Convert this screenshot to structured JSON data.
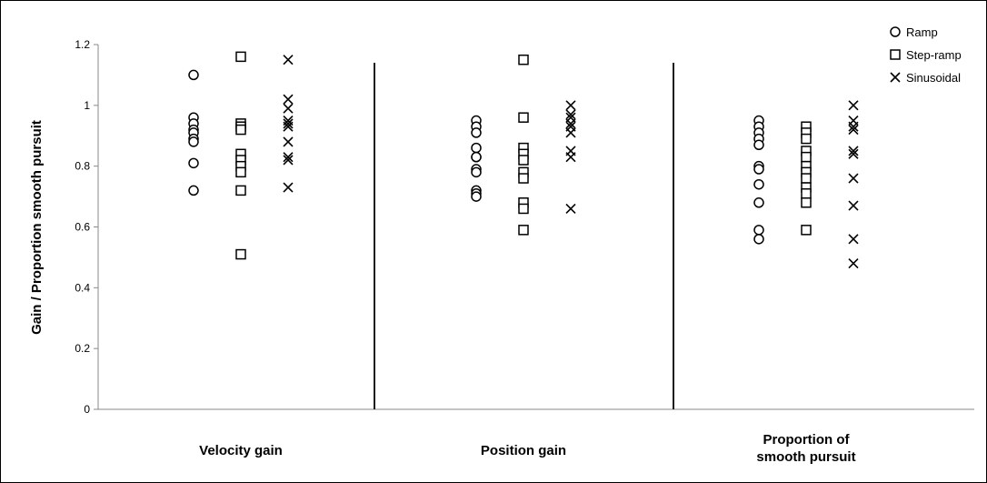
{
  "chart_data": {
    "type": "scatter",
    "title": "",
    "xlabel": "",
    "ylabel": "Gain / Proportion smooth pursuit",
    "ylim": [
      0,
      1.2
    ],
    "yticks": [
      "0",
      "0.2",
      "0.4",
      "0.6",
      "0.8",
      "1",
      "1.2"
    ],
    "ytick_values": [
      0,
      0.2,
      0.4,
      0.6,
      0.8,
      1.0,
      1.2
    ],
    "grid": false,
    "legend_position": "top-right",
    "categories": [
      {
        "lines": [
          "Velocity gain"
        ]
      },
      {
        "lines": [
          "Position gain"
        ]
      },
      {
        "lines": [
          "Proportion of",
          "smooth pursuit"
        ]
      }
    ],
    "series": [
      {
        "name": "Ramp",
        "marker": "circle",
        "values": [
          [
            1.1,
            0.96,
            0.94,
            0.92,
            0.91,
            0.89,
            0.88,
            0.81,
            0.72
          ],
          [
            0.95,
            0.93,
            0.91,
            0.86,
            0.83,
            0.83,
            0.79,
            0.78,
            0.72,
            0.71,
            0.7
          ],
          [
            0.95,
            0.93,
            0.91,
            0.89,
            0.87,
            0.8,
            0.79,
            0.74,
            0.68,
            0.59,
            0.56
          ]
        ]
      },
      {
        "name": "Step-ramp",
        "marker": "square",
        "values": [
          [
            1.16,
            0.94,
            0.93,
            0.92,
            0.84,
            0.82,
            0.8,
            0.78,
            0.72,
            0.51
          ],
          [
            1.15,
            0.96,
            0.86,
            0.84,
            0.82,
            0.78,
            0.76,
            0.68,
            0.66,
            0.59
          ],
          [
            0.93,
            0.91,
            0.89,
            0.85,
            0.83,
            0.8,
            0.78,
            0.76,
            0.73,
            0.71,
            0.68,
            0.59
          ]
        ]
      },
      {
        "name": "Sinusoidal",
        "marker": "x",
        "values": [
          [
            1.15,
            1.02,
            0.99,
            0.95,
            0.94,
            0.93,
            0.88,
            0.83,
            0.82,
            0.73
          ],
          [
            1.0,
            0.97,
            0.96,
            0.94,
            0.93,
            0.91,
            0.85,
            0.83,
            0.66
          ],
          [
            1.0,
            0.95,
            0.93,
            0.92,
            0.85,
            0.84,
            0.76,
            0.67,
            0.56,
            0.48
          ]
        ]
      }
    ]
  }
}
